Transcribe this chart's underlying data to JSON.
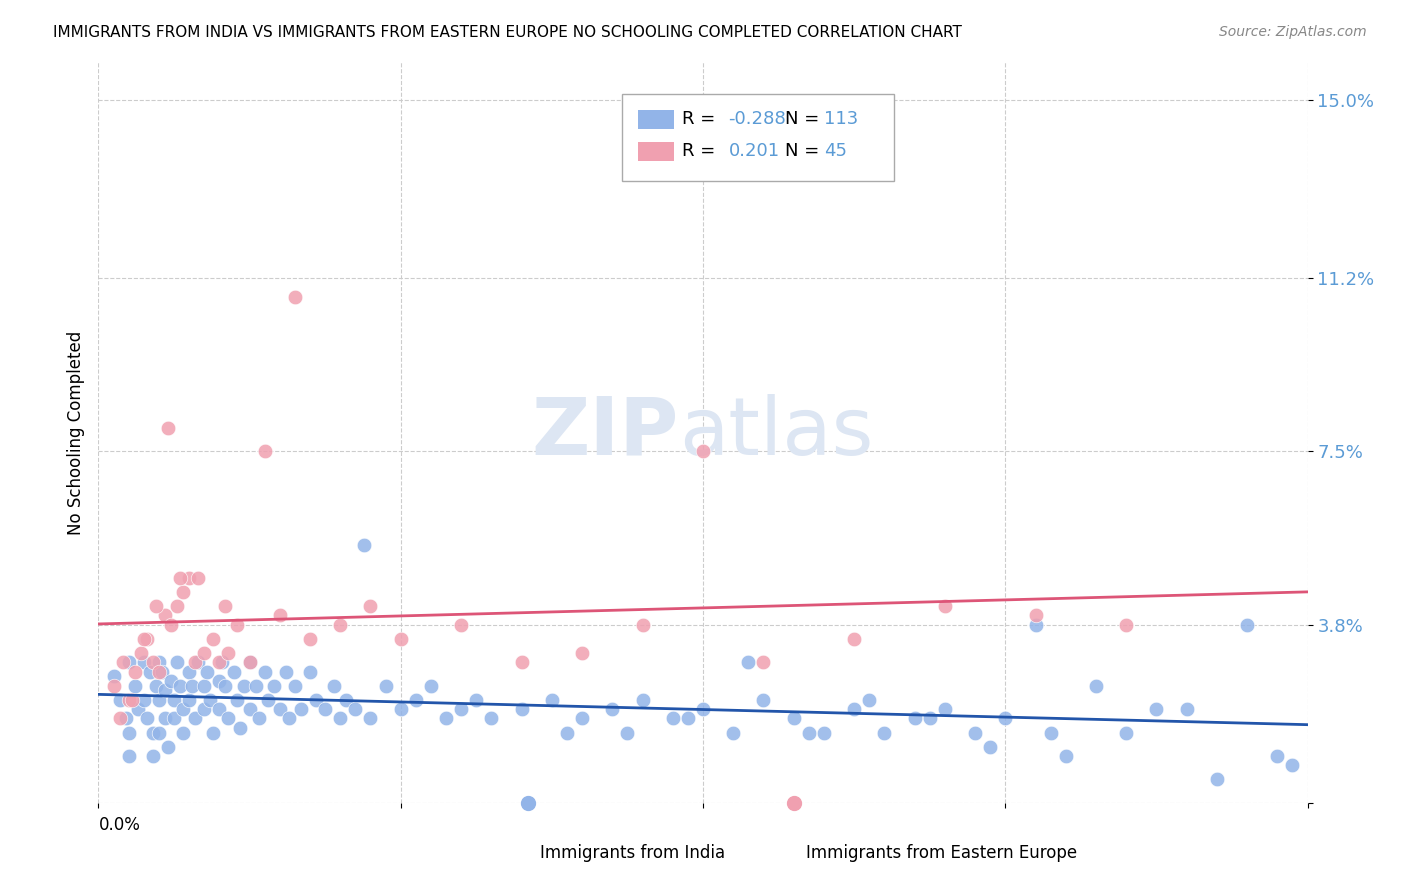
{
  "title": "IMMIGRANTS FROM INDIA VS IMMIGRANTS FROM EASTERN EUROPE NO SCHOOLING COMPLETED CORRELATION CHART",
  "source": "Source: ZipAtlas.com",
  "ylabel": "No Schooling Completed",
  "yticks": [
    0.0,
    0.038,
    0.075,
    0.112,
    0.15
  ],
  "ytick_labels": [
    "",
    "3.8%",
    "7.5%",
    "11.2%",
    "15.0%"
  ],
  "xlim": [
    0.0,
    0.4
  ],
  "ylim": [
    0.0,
    0.158
  ],
  "color_india": "#92b4e8",
  "color_eastern": "#f0a0b0",
  "color_india_line": "#2255aa",
  "color_eastern_line": "#dd5577",
  "color_ytick": "#5b9bd5",
  "watermark_zip": "ZIP",
  "watermark_atlas": "atlas",
  "india_x": [
    0.005,
    0.007,
    0.009,
    0.01,
    0.01,
    0.01,
    0.012,
    0.013,
    0.015,
    0.015,
    0.016,
    0.017,
    0.018,
    0.018,
    0.019,
    0.02,
    0.02,
    0.02,
    0.021,
    0.022,
    0.022,
    0.023,
    0.024,
    0.025,
    0.025,
    0.026,
    0.027,
    0.028,
    0.028,
    0.03,
    0.03,
    0.031,
    0.032,
    0.033,
    0.035,
    0.035,
    0.036,
    0.037,
    0.038,
    0.04,
    0.04,
    0.041,
    0.042,
    0.043,
    0.045,
    0.046,
    0.047,
    0.048,
    0.05,
    0.05,
    0.052,
    0.053,
    0.055,
    0.056,
    0.058,
    0.06,
    0.062,
    0.063,
    0.065,
    0.067,
    0.07,
    0.072,
    0.075,
    0.078,
    0.08,
    0.082,
    0.085,
    0.088,
    0.09,
    0.095,
    0.1,
    0.105,
    0.11,
    0.115,
    0.12,
    0.125,
    0.13,
    0.14,
    0.15,
    0.155,
    0.16,
    0.17,
    0.175,
    0.18,
    0.19,
    0.2,
    0.21,
    0.22,
    0.23,
    0.24,
    0.25,
    0.26,
    0.27,
    0.28,
    0.29,
    0.3,
    0.31,
    0.32,
    0.34,
    0.36,
    0.37,
    0.38,
    0.39,
    0.395,
    0.35,
    0.33,
    0.315,
    0.295,
    0.275,
    0.255,
    0.235,
    0.215,
    0.195
  ],
  "india_y": [
    0.027,
    0.022,
    0.018,
    0.03,
    0.015,
    0.01,
    0.025,
    0.02,
    0.03,
    0.022,
    0.018,
    0.028,
    0.015,
    0.01,
    0.025,
    0.03,
    0.022,
    0.015,
    0.028,
    0.024,
    0.018,
    0.012,
    0.026,
    0.022,
    0.018,
    0.03,
    0.025,
    0.02,
    0.015,
    0.028,
    0.022,
    0.025,
    0.018,
    0.03,
    0.025,
    0.02,
    0.028,
    0.022,
    0.015,
    0.026,
    0.02,
    0.03,
    0.025,
    0.018,
    0.028,
    0.022,
    0.016,
    0.025,
    0.03,
    0.02,
    0.025,
    0.018,
    0.028,
    0.022,
    0.025,
    0.02,
    0.028,
    0.018,
    0.025,
    0.02,
    0.028,
    0.022,
    0.02,
    0.025,
    0.018,
    0.022,
    0.02,
    0.055,
    0.018,
    0.025,
    0.02,
    0.022,
    0.025,
    0.018,
    0.02,
    0.022,
    0.018,
    0.02,
    0.022,
    0.015,
    0.018,
    0.02,
    0.015,
    0.022,
    0.018,
    0.02,
    0.015,
    0.022,
    0.018,
    0.015,
    0.02,
    0.015,
    0.018,
    0.02,
    0.015,
    0.018,
    0.038,
    0.01,
    0.015,
    0.02,
    0.005,
    0.038,
    0.01,
    0.008,
    0.02,
    0.025,
    0.015,
    0.012,
    0.018,
    0.022,
    0.015,
    0.03,
    0.018
  ],
  "eastern_x": [
    0.005,
    0.008,
    0.01,
    0.012,
    0.014,
    0.016,
    0.018,
    0.02,
    0.022,
    0.024,
    0.026,
    0.028,
    0.03,
    0.032,
    0.035,
    0.038,
    0.04,
    0.043,
    0.046,
    0.05,
    0.055,
    0.06,
    0.065,
    0.07,
    0.08,
    0.09,
    0.1,
    0.12,
    0.14,
    0.16,
    0.18,
    0.2,
    0.22,
    0.25,
    0.28,
    0.31,
    0.34,
    0.007,
    0.011,
    0.015,
    0.019,
    0.023,
    0.027,
    0.033,
    0.042
  ],
  "eastern_y": [
    0.025,
    0.03,
    0.022,
    0.028,
    0.032,
    0.035,
    0.03,
    0.028,
    0.04,
    0.038,
    0.042,
    0.045,
    0.048,
    0.03,
    0.032,
    0.035,
    0.03,
    0.032,
    0.038,
    0.03,
    0.075,
    0.04,
    0.108,
    0.035,
    0.038,
    0.042,
    0.035,
    0.038,
    0.03,
    0.032,
    0.038,
    0.075,
    0.03,
    0.035,
    0.042,
    0.04,
    0.038,
    0.018,
    0.022,
    0.035,
    0.042,
    0.08,
    0.048,
    0.048,
    0.042
  ]
}
